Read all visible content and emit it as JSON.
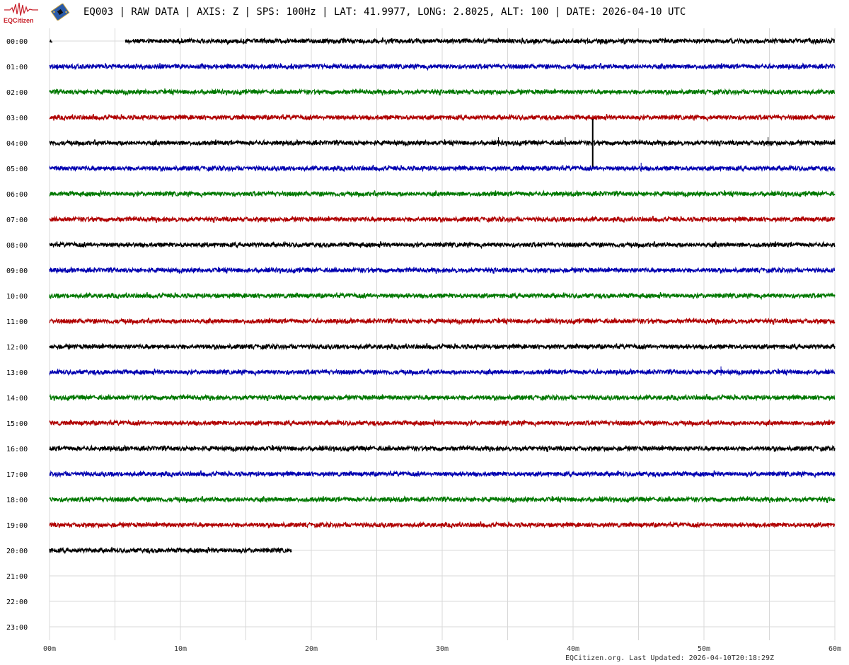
{
  "header": {
    "logo_text": "EQCitizen",
    "title": "EQ003 | RAW DATA | AXIS: Z | SPS: 100Hz | LAT: 41.9977, LONG: 2.8025, ALT: 100 | DATE: 2026-04-10 UTC"
  },
  "footer": "EQCitizen.org. Last Updated: 2026-04-10T20:18:29Z",
  "colors": {
    "trace_cycle": [
      "#000000",
      "#0000b0",
      "#007800",
      "#b00000"
    ],
    "grid": "#d8d8d8",
    "logo": "#c8202a"
  },
  "chart_data": {
    "type": "line",
    "subtype": "helicorder",
    "grid": true,
    "xlim": [
      0,
      60
    ],
    "x_unit": "minutes",
    "x_ticks": [
      "00m",
      "10m",
      "20m",
      "30m",
      "40m",
      "50m",
      "60m"
    ],
    "x_gridline_interval_min": 5,
    "y_ticks": [
      "00:00",
      "01:00",
      "02:00",
      "03:00",
      "04:00",
      "05:00",
      "06:00",
      "07:00",
      "08:00",
      "09:00",
      "10:00",
      "11:00",
      "12:00",
      "13:00",
      "14:00",
      "15:00",
      "16:00",
      "17:00",
      "18:00",
      "19:00",
      "20:00",
      "21:00",
      "22:00",
      "23:00"
    ],
    "series": [
      {
        "hour": "00:00",
        "segments": [
          [
            0,
            0.2
          ],
          [
            5.8,
            60
          ]
        ]
      },
      {
        "hour": "01:00",
        "segments": [
          [
            0,
            60
          ]
        ]
      },
      {
        "hour": "02:00",
        "segments": [
          [
            0,
            60
          ]
        ]
      },
      {
        "hour": "03:00",
        "segments": [
          [
            0,
            60
          ]
        ]
      },
      {
        "hour": "04:00",
        "segments": [
          [
            0,
            60
          ]
        ],
        "events": [
          {
            "minute": 41.5,
            "amplitude": "large"
          },
          {
            "minute": 39.4,
            "amplitude": "small"
          },
          {
            "minute": 54.9,
            "amplitude": "small"
          },
          {
            "minute": 34.3,
            "amplitude": "small"
          }
        ]
      },
      {
        "hour": "05:00",
        "segments": [
          [
            0,
            60
          ]
        ],
        "events": [
          {
            "minute": 45.2,
            "amplitude": "small"
          }
        ]
      },
      {
        "hour": "06:00",
        "segments": [
          [
            0,
            60
          ]
        ]
      },
      {
        "hour": "07:00",
        "segments": [
          [
            0,
            60
          ]
        ]
      },
      {
        "hour": "08:00",
        "segments": [
          [
            0,
            60
          ]
        ]
      },
      {
        "hour": "09:00",
        "segments": [
          [
            0,
            60
          ]
        ]
      },
      {
        "hour": "10:00",
        "segments": [
          [
            0,
            60
          ]
        ]
      },
      {
        "hour": "11:00",
        "segments": [
          [
            0,
            60
          ]
        ]
      },
      {
        "hour": "12:00",
        "segments": [
          [
            0,
            60
          ]
        ]
      },
      {
        "hour": "13:00",
        "segments": [
          [
            0,
            60
          ]
        ],
        "events": [
          {
            "minute": 51.3,
            "amplitude": "small"
          }
        ]
      },
      {
        "hour": "14:00",
        "segments": [
          [
            0,
            60
          ]
        ]
      },
      {
        "hour": "15:00",
        "segments": [
          [
            0,
            60
          ]
        ]
      },
      {
        "hour": "16:00",
        "segments": [
          [
            0,
            60
          ]
        ]
      },
      {
        "hour": "17:00",
        "segments": [
          [
            0,
            60
          ]
        ]
      },
      {
        "hour": "18:00",
        "segments": [
          [
            0,
            60
          ]
        ]
      },
      {
        "hour": "19:00",
        "segments": [
          [
            0,
            60
          ]
        ]
      },
      {
        "hour": "20:00",
        "segments": [
          [
            0,
            18.5
          ]
        ]
      }
    ]
  }
}
